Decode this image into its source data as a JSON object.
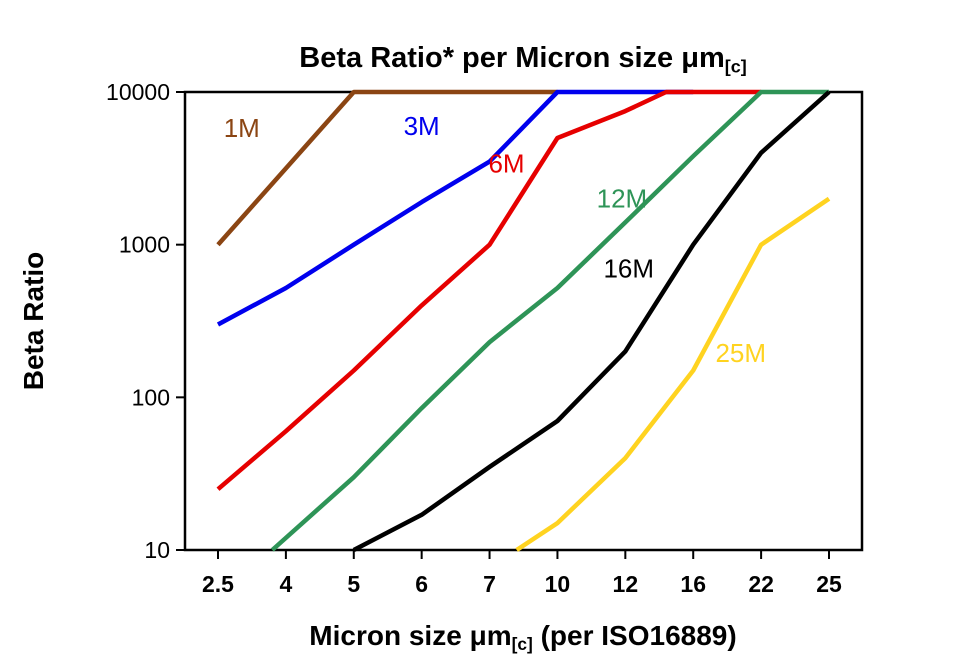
{
  "chart_data": {
    "type": "line",
    "title": {
      "prefix": "Beta Ratio* per Micron size ",
      "mu_term": "μm",
      "subscript": "[c]"
    },
    "xlabel": {
      "prefix": "Micron size ",
      "mu_term": "μm",
      "subscript": "[c]",
      "suffix": " (per ISO16889)"
    },
    "ylabel": "Beta Ratio",
    "x_categories": [
      "2.5",
      "4",
      "5",
      "6",
      "7",
      "10",
      "12",
      "16",
      "22",
      "25"
    ],
    "y_ticks": [
      10,
      100,
      1000,
      10000
    ],
    "y_scale": "log",
    "ylim": [
      10,
      10000
    ],
    "grid": false,
    "legend": "inline-labels-on-lines",
    "series": [
      {
        "name": "1M",
        "color": "#8b4513",
        "points": [
          [
            0,
            1000
          ],
          [
            2,
            10000
          ],
          [
            5,
            10000
          ]
        ]
      },
      {
        "name": "3M",
        "color": "#0000ee",
        "points": [
          [
            0,
            300
          ],
          [
            1,
            520
          ],
          [
            2,
            1000
          ],
          [
            3,
            1900
          ],
          [
            4,
            3500
          ],
          [
            5,
            10000
          ],
          [
            7,
            10000
          ]
        ]
      },
      {
        "name": "6M",
        "color": "#e60000",
        "points": [
          [
            0,
            25
          ],
          [
            1,
            60
          ],
          [
            2,
            150
          ],
          [
            3,
            400
          ],
          [
            4,
            1000
          ],
          [
            5,
            5000
          ],
          [
            6,
            7500
          ],
          [
            6.6,
            10000
          ],
          [
            8,
            10000
          ]
        ]
      },
      {
        "name": "12M",
        "color": "#2e9457",
        "points": [
          [
            0.8,
            10
          ],
          [
            2,
            30
          ],
          [
            3,
            85
          ],
          [
            4,
            230
          ],
          [
            5,
            520
          ],
          [
            6,
            1400
          ],
          [
            7,
            3800
          ],
          [
            8,
            10000
          ],
          [
            9,
            10000
          ]
        ]
      },
      {
        "name": "16M",
        "color": "#000000",
        "points": [
          [
            2,
            10
          ],
          [
            3,
            17
          ],
          [
            4,
            35
          ],
          [
            5,
            70
          ],
          [
            6,
            200
          ],
          [
            7,
            1000
          ],
          [
            8,
            4000
          ],
          [
            9,
            10000
          ]
        ]
      },
      {
        "name": "25M",
        "color": "#ffd320",
        "points": [
          [
            4.4,
            10
          ],
          [
            5,
            15
          ],
          [
            6,
            40
          ],
          [
            7,
            150
          ],
          [
            8,
            1000
          ],
          [
            9,
            2000
          ]
        ]
      }
    ],
    "series_labels": [
      {
        "text": "1M",
        "color": "#8b4513",
        "x_index": 0.35,
        "value": 5800
      },
      {
        "text": "3M",
        "color": "#0000ee",
        "x_index": 3.0,
        "value": 6000
      },
      {
        "text": "6M",
        "color": "#e60000",
        "x_index": 4.25,
        "value": 3400
      },
      {
        "text": "12M",
        "color": "#2e9457",
        "x_index": 5.95,
        "value": 2000
      },
      {
        "text": "16M",
        "color": "#000000",
        "x_index": 6.05,
        "value": 700
      },
      {
        "text": "25M",
        "color": "#ffd320",
        "x_index": 7.7,
        "value": 195
      }
    ]
  }
}
